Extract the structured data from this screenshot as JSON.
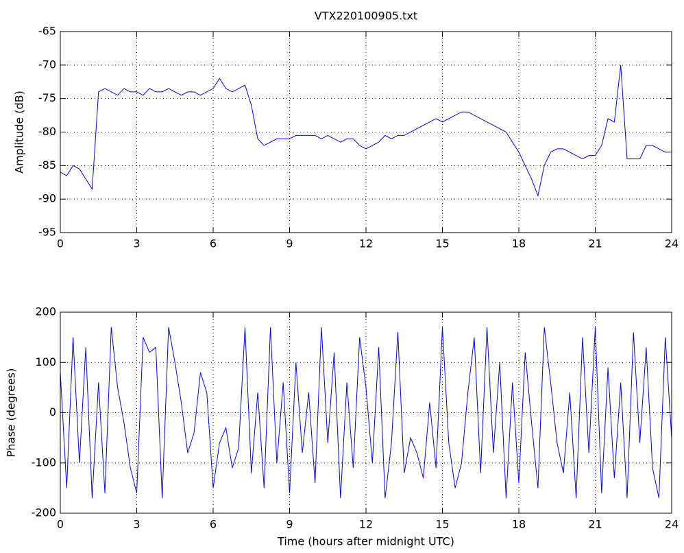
{
  "chart_data": [
    {
      "type": "line",
      "title": "VTX220100905.txt",
      "ylabel": "Amplitude (dB)",
      "x": [
        0,
        0.25,
        0.5,
        0.75,
        1,
        1.25,
        1.5,
        1.75,
        2,
        2.25,
        2.5,
        2.75,
        3,
        3.25,
        3.5,
        3.75,
        4,
        4.25,
        4.5,
        4.75,
        5,
        5.25,
        5.5,
        5.75,
        6,
        6.25,
        6.5,
        6.75,
        7,
        7.25,
        7.5,
        7.75,
        8,
        8.25,
        8.5,
        8.75,
        9,
        9.25,
        9.5,
        9.75,
        10,
        10.25,
        10.5,
        10.75,
        11,
        11.25,
        11.5,
        11.75,
        12,
        12.25,
        12.5,
        12.75,
        13,
        13.25,
        13.5,
        13.75,
        14,
        14.25,
        14.5,
        14.75,
        15,
        15.25,
        15.5,
        15.75,
        16,
        16.25,
        16.5,
        16.75,
        17,
        17.25,
        17.5,
        17.75,
        18,
        18.25,
        18.5,
        18.75,
        19,
        19.25,
        19.5,
        19.75,
        20,
        20.25,
        20.5,
        20.75,
        21,
        21.25,
        21.5,
        21.75,
        22,
        22.25,
        22.5,
        22.75,
        23,
        23.25,
        23.5,
        23.75,
        24
      ],
      "values": [
        -86,
        -86.5,
        -85,
        -85.5,
        -87,
        -88.5,
        -74,
        -73.5,
        -74,
        -74.5,
        -73.5,
        -74,
        -74,
        -74.5,
        -73.5,
        -74,
        -74,
        -73.5,
        -74,
        -74.5,
        -74,
        -74,
        -74.5,
        -74,
        -73.5,
        -72,
        -73.5,
        -74,
        -73.5,
        -73,
        -76,
        -81,
        -82,
        -81.5,
        -81,
        -81,
        -81,
        -80.5,
        -80.5,
        -80.5,
        -80.5,
        -81,
        -80.5,
        -81,
        -81.5,
        -81,
        -81,
        -82,
        -82.5,
        -82,
        -81.5,
        -80.5,
        -81,
        -80.5,
        -80.5,
        -80,
        -79.5,
        -79,
        -78.5,
        -78,
        -78.5,
        -78,
        -77.5,
        -77,
        -77,
        -77.5,
        -78,
        -78.5,
        -79,
        -79.5,
        -80,
        -81.5,
        -83,
        -85,
        -87,
        -89.5,
        -85,
        -83,
        -82.5,
        -82.5,
        -83,
        -83.5,
        -84,
        -83.5,
        -83.5,
        -82,
        -78,
        -78.5,
        -70,
        -84,
        -84,
        -84,
        -82,
        -82,
        -82.5,
        -83,
        -83
      ],
      "color": "#0000ff",
      "xlim": [
        0,
        24
      ],
      "xticks": [
        0,
        3,
        6,
        9,
        12,
        15,
        18,
        21,
        24
      ],
      "ylim": [
        -95,
        -65
      ],
      "yticks": [
        -95,
        -90,
        -85,
        -80,
        -75,
        -70,
        -65
      ],
      "grid": true
    },
    {
      "type": "line",
      "ylabel": "Phase (degrees)",
      "xlabel": "Time (hours after midnight UTC)",
      "x": [
        0,
        0.25,
        0.5,
        0.75,
        1,
        1.25,
        1.5,
        1.75,
        2,
        2.25,
        2.5,
        2.75,
        3,
        3.25,
        3.5,
        3.75,
        4,
        4.25,
        4.5,
        4.75,
        5,
        5.25,
        5.5,
        5.75,
        6,
        6.25,
        6.5,
        6.75,
        7,
        7.25,
        7.5,
        7.75,
        8,
        8.25,
        8.5,
        8.75,
        9,
        9.25,
        9.5,
        9.75,
        10,
        10.25,
        10.5,
        10.75,
        11,
        11.25,
        11.5,
        11.75,
        12,
        12.25,
        12.5,
        12.75,
        13,
        13.25,
        13.5,
        13.75,
        14,
        14.25,
        14.5,
        14.75,
        15,
        15.25,
        15.5,
        15.75,
        16,
        16.25,
        16.5,
        16.75,
        17,
        17.25,
        17.5,
        17.75,
        18,
        18.25,
        18.5,
        18.75,
        19,
        19.25,
        19.5,
        19.75,
        20,
        20.25,
        20.5,
        20.75,
        21,
        21.25,
        21.5,
        21.75,
        22,
        22.25,
        22.5,
        22.75,
        23,
        23.25,
        23.5,
        23.75,
        24
      ],
      "values": [
        80,
        -150,
        150,
        -100,
        130,
        -170,
        60,
        -160,
        170,
        50,
        -20,
        -110,
        -160,
        150,
        120,
        130,
        -170,
        170,
        100,
        20,
        -80,
        -40,
        80,
        40,
        -150,
        -60,
        -30,
        -110,
        -70,
        170,
        -120,
        40,
        -150,
        170,
        -100,
        60,
        -160,
        100,
        -80,
        40,
        -140,
        170,
        -60,
        120,
        -170,
        60,
        -110,
        150,
        50,
        -100,
        130,
        -170,
        -60,
        160,
        -120,
        -50,
        -80,
        -130,
        20,
        -110,
        170,
        -60,
        -150,
        -100,
        40,
        150,
        -120,
        170,
        -80,
        100,
        -170,
        60,
        -140,
        120,
        -20,
        -150,
        170,
        60,
        -60,
        -120,
        40,
        -170,
        150,
        -80,
        170,
        -160,
        90,
        -130,
        60,
        -170,
        160,
        -60,
        130,
        -110,
        -170,
        150,
        -50
      ],
      "color": "#0000ff",
      "xlim": [
        0,
        24
      ],
      "xticks": [
        0,
        3,
        6,
        9,
        12,
        15,
        18,
        21,
        24
      ],
      "ylim": [
        -200,
        200
      ],
      "yticks": [
        -200,
        -100,
        0,
        100,
        200
      ],
      "grid": true
    }
  ]
}
